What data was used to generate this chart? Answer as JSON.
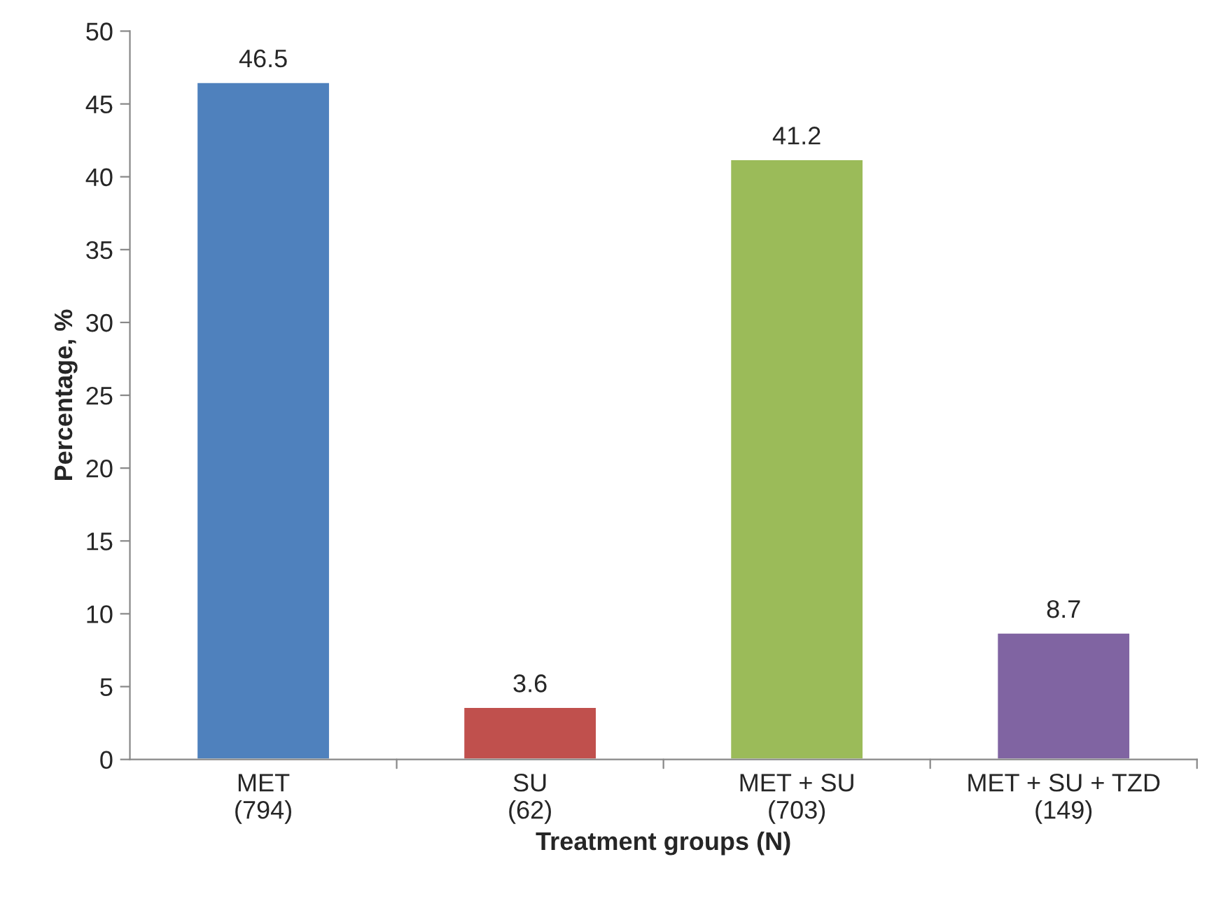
{
  "chart_data": {
    "type": "bar",
    "categories": [
      "MET\n(794)",
      "SU\n(62)",
      "MET + SU\n(703)",
      "MET + SU + TZD\n(149)"
    ],
    "values": [
      46.5,
      3.6,
      41.2,
      8.7
    ],
    "colors": [
      "#4f81bd",
      "#c0504d",
      "#9bbb59",
      "#8064a2"
    ],
    "xlabel": "Treatment groups (N)",
    "ylabel": "Percentage, %",
    "ylim": [
      0,
      50
    ],
    "yticks": [
      0,
      5,
      10,
      15,
      20,
      25,
      30,
      35,
      40,
      45,
      50
    ],
    "data_labels": true,
    "grid": false,
    "legend": false
  }
}
